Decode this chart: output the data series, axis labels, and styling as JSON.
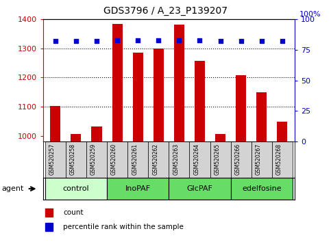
{
  "title": "GDS3796 / A_23_P139207",
  "samples": [
    "GSM520257",
    "GSM520258",
    "GSM520259",
    "GSM520260",
    "GSM520261",
    "GSM520262",
    "GSM520263",
    "GSM520264",
    "GSM520265",
    "GSM520266",
    "GSM520267",
    "GSM520268"
  ],
  "counts": [
    1102,
    1005,
    1032,
    1385,
    1285,
    1300,
    1382,
    1258,
    1005,
    1207,
    1150,
    1048
  ],
  "percentile_ranks": [
    82,
    82,
    82,
    83,
    83,
    83,
    83,
    83,
    82,
    82,
    82,
    82
  ],
  "bar_color": "#cc0000",
  "dot_color": "#0000cc",
  "ylim_left": [
    980,
    1400
  ],
  "ylim_right": [
    0,
    100
  ],
  "yticks_left": [
    1000,
    1100,
    1200,
    1300,
    1400
  ],
  "yticks_right": [
    0,
    25,
    50,
    75,
    100
  ],
  "grid_values": [
    1100,
    1200,
    1300
  ],
  "groups": [
    {
      "label": "control",
      "start": 0,
      "end": 3,
      "color": "#ccffcc"
    },
    {
      "label": "InoPAF",
      "start": 3,
      "end": 6,
      "color": "#66dd66"
    },
    {
      "label": "GlcPAF",
      "start": 6,
      "end": 9,
      "color": "#66dd66"
    },
    {
      "label": "edelfosine",
      "start": 9,
      "end": 12,
      "color": "#66dd66"
    }
  ],
  "legend_count_color": "#cc0000",
  "legend_dot_color": "#0000cc",
  "tick_color_left": "#cc0000",
  "tick_color_right": "#0000cc",
  "sample_box_color": "#d3d3d3",
  "bar_width": 0.5
}
